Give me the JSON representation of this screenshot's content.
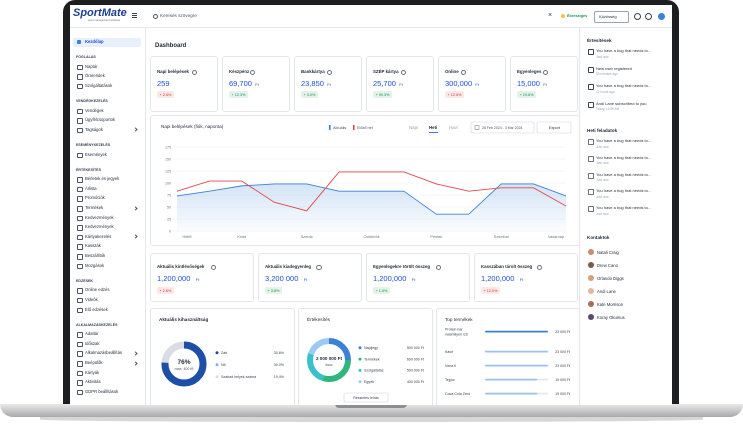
{
  "header": {
    "logo": "SportMate",
    "logo_sub": "sport management software",
    "search_placeholder": "Keresés szövegre",
    "close": "×",
    "status": "Ébresztgés",
    "community": "Közösség"
  },
  "sidebar": {
    "active": "Kezdőlap",
    "sections": [
      {
        "title": "FOGLALÁS",
        "items": [
          {
            "label": "Naptár"
          },
          {
            "label": "Órarendek"
          },
          {
            "label": "Szolgáltatások"
          }
        ]
      },
      {
        "title": "VENDÉGKEZELÉS",
        "items": [
          {
            "label": "Vendégek"
          },
          {
            "label": "Ügyfélcsoportok"
          },
          {
            "label": "Tagságok",
            "submenu": true
          }
        ]
      },
      {
        "title": "ESEMÉNYKEZELÉS",
        "items": [
          {
            "label": "Események"
          }
        ]
      },
      {
        "title": "ÉRTÉKESÍTÉS",
        "items": [
          {
            "label": "Bérletek és jegyek"
          },
          {
            "label": "Árlista"
          },
          {
            "label": "Promóciók"
          },
          {
            "label": "Termékek",
            "submenu": true
          },
          {
            "label": "Kedvezmények"
          },
          {
            "label": "Kedvezmények"
          },
          {
            "label": "Kártyakezelés",
            "submenu": true
          },
          {
            "label": "Kasszák"
          },
          {
            "label": "Beszállítók"
          },
          {
            "label": "Mozgások"
          }
        ]
      },
      {
        "title": "EDZÉSEK",
        "items": [
          {
            "label": "Online edzés"
          },
          {
            "label": "Videók"
          },
          {
            "label": "Élő edzések"
          }
        ]
      },
      {
        "title": "ALKALMAZÁSKEZELÉS",
        "items": [
          {
            "label": "Adattár"
          },
          {
            "label": "Időszak"
          },
          {
            "label": "Alkalmazásbeállítás",
            "submenu": true
          },
          {
            "label": "Beépülők",
            "submenu": true
          },
          {
            "label": "Kártyák"
          },
          {
            "label": "Aktivitás"
          },
          {
            "label": "GDPR beállítások"
          }
        ]
      }
    ]
  },
  "main": {
    "title": "Dashboard",
    "kpis": [
      {
        "label": "Napi belépések",
        "value": "259",
        "change": "+ 2.6%",
        "trend": "negative"
      },
      {
        "label": "Készpénz",
        "value": "69,700",
        "unit": "Ft",
        "change": "+ 12.3%",
        "trend": "positive"
      },
      {
        "label": "Bankkártya",
        "value": "23,850",
        "unit": "Ft",
        "change": "+ 3.0%",
        "trend": "positive"
      },
      {
        "label": "SZÉP kártya",
        "value": "25,700",
        "unit": "Ft",
        "change": "+ 90.3%",
        "trend": "positive"
      },
      {
        "label": "Online",
        "value": "300,000",
        "unit": "Ft",
        "change": "+ 12.6%",
        "trend": "negative"
      },
      {
        "label": "Egyenleges",
        "value": "15,000",
        "unit": "Ft",
        "change": "+ 19.6%",
        "trend": "positive"
      }
    ],
    "chart": {
      "type": "line",
      "title": "Napi belépések (fiók, naponta)",
      "categories": [
        "Hétfő",
        null,
        "Kedd",
        null,
        "Szerda",
        null,
        "Csütörtök",
        null,
        "Péntek",
        null,
        "Szombat",
        null,
        "Vasárnap"
      ],
      "series": [
        {
          "name": "Aktuális",
          "color": "#3b82d6",
          "values": [
            73,
            83,
            94,
            98,
            98,
            83,
            83,
            83,
            35,
            35,
            98,
            98,
            73
          ]
        },
        {
          "name": "Előző hét",
          "color": "#e0474c",
          "values": [
            83,
            104,
            104,
            60,
            42,
            123,
            123,
            123,
            98,
            83,
            90,
            90,
            52
          ]
        }
      ],
      "ylim": [
        0,
        175
      ],
      "yticks": [
        0,
        25,
        50,
        75,
        100,
        125,
        150,
        175
      ],
      "grid": true,
      "tabs": [
        "Napi",
        "Heti",
        "Havi"
      ],
      "active_tab": 1,
      "date_range": "26 Feb 2024 - 3 Mar 2024",
      "export": "Export"
    },
    "balances": [
      {
        "label": "Aktuális kintlévőségek",
        "value": "1,200,000",
        "unit": "Ft",
        "change": "+ 2.6%",
        "trend": "negative"
      },
      {
        "label": "Aktuális kiadegyenleg",
        "value": "3,200 000",
        "unit": "Ft",
        "change": "+ 3.8%",
        "trend": "positive"
      },
      {
        "label": "Egyenlegekre törölt összeg",
        "value": "1,200,000",
        "unit": "Ft",
        "change": "+ 1.0%",
        "trend": "positive"
      },
      {
        "label": "Kasszában tárolt összeg",
        "value": "1,200,000",
        "unit": "Ft",
        "change": "+ 12.0%",
        "trend": "negative"
      }
    ],
    "utilization": {
      "title": "Aktuális kihasználtság",
      "value": 76,
      "value_label": "76%",
      "sub": "max: 400 fő",
      "legend": [
        {
          "label": "Zárt",
          "value": "30.6%",
          "color": "#1e4fa8"
        },
        {
          "label": "Nő",
          "value": "30.0%",
          "color": "#7fb3ef"
        },
        {
          "label": "Szabad helyek száma",
          "value": "19.4%",
          "color": "#d9dde3"
        }
      ]
    },
    "sales": {
      "title": "Értékesítés",
      "total": "2 000 000 Ft",
      "sub": "össz",
      "button": "Részletes leírás",
      "items": [
        {
          "label": "Napijegy",
          "value": 500000,
          "value_label": "500 000 Ft",
          "color": "#3b82d6"
        },
        {
          "label": "Termékek",
          "value": 600000,
          "value_label": "600 000 Ft",
          "color": "#2fb67c"
        },
        {
          "label": "Szolgáltatás",
          "value": 500000,
          "value_label": "500 000 Ft",
          "color": "#38c1c9"
        },
        {
          "label": "Egyéb",
          "value": 400000,
          "value_label": "400 000 Ft",
          "color": "#9cc9f5"
        }
      ]
    },
    "top_products": {
      "title": "Top termékek",
      "items": [
        {
          "name": "Protein bar valamilyen ízű",
          "value": 23000,
          "value_label": "23 000 Ft"
        },
        {
          "name": "Kávé",
          "value": 23000,
          "value_label": "23 000 Ft"
        },
        {
          "name": "Vona II",
          "value": 23000,
          "value_label": "23 000 Ft"
        },
        {
          "name": "Tejpor",
          "value": 19000,
          "value_label": "19 000 Ft"
        },
        {
          "name": "Coca Cola Zéró",
          "value": 19000,
          "value_label": "19 000 Ft"
        }
      ]
    }
  },
  "right": {
    "notifications": {
      "title": "Értesítések",
      "items": [
        {
          "text": "You have a bug that needs to...",
          "time": "Just now"
        },
        {
          "text": "New user registered",
          "time": "59 minutes ago"
        },
        {
          "text": "You have a bug that needs to...",
          "time": "12 hours ago"
        },
        {
          "text": "Andi Lane subscribed to you",
          "time": "Today, 11:59 AM"
        }
      ]
    },
    "tasks": {
      "title": "Heti feladatok",
      "items": [
        {
          "text": "You have a bug that needs to...",
          "time": "Just now"
        },
        {
          "text": "You have a bug that needs to...",
          "time": "Just now"
        },
        {
          "text": "You have a bug that needs to...",
          "time": "Just now"
        },
        {
          "text": "You have a bug that needs to...",
          "time": "Just now"
        },
        {
          "text": "You have a bug that needs to...",
          "time": "Just now"
        }
      ]
    },
    "contacts": {
      "title": "Kontaktok",
      "items": [
        "Natali Craig",
        "Drew Cano",
        "Orlando Diggs",
        "Andi Lane",
        "Kate Morrison",
        "Koray Okumus"
      ]
    }
  }
}
